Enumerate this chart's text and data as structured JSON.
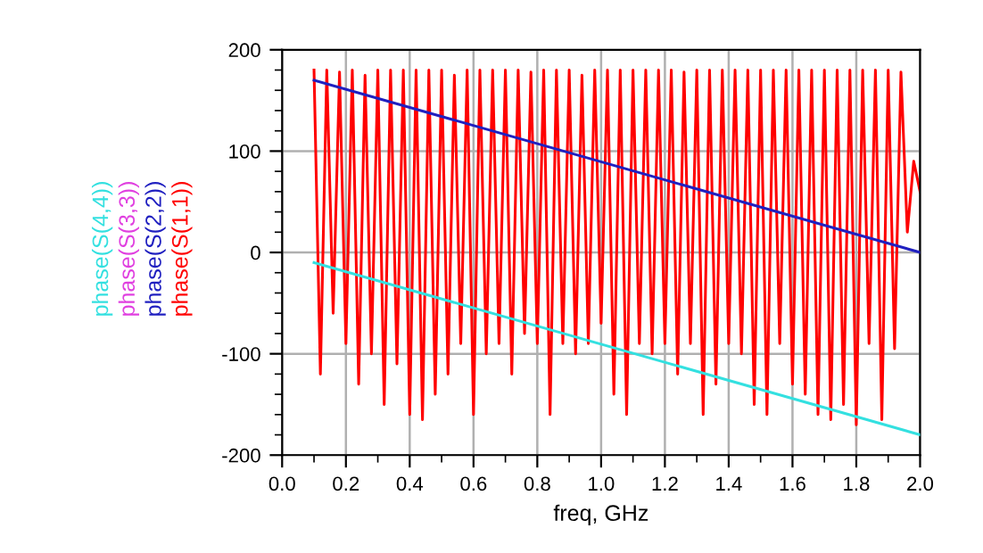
{
  "chart_data": {
    "type": "line",
    "xlabel": "freq, GHz",
    "xlim": [
      0,
      2
    ],
    "ylim": [
      -200,
      200
    ],
    "xticks": [
      {
        "value": 0,
        "label": "0.0"
      },
      {
        "value": 0.1,
        "label": null
      },
      {
        "value": 0.2,
        "label": "0.2"
      },
      {
        "value": 0.3,
        "label": null
      },
      {
        "value": 0.4,
        "label": "0.4"
      },
      {
        "value": 0.5,
        "label": null
      },
      {
        "value": 0.6,
        "label": "0.6"
      },
      {
        "value": 0.7,
        "label": null
      },
      {
        "value": 0.8,
        "label": "0.8"
      },
      {
        "value": 0.9,
        "label": null
      },
      {
        "value": 1,
        "label": "1.0"
      },
      {
        "value": 1.1,
        "label": null
      },
      {
        "value": 1.2,
        "label": "1.2"
      },
      {
        "value": 1.3,
        "label": null
      },
      {
        "value": 1.4,
        "label": "1.4"
      },
      {
        "value": 1.5,
        "label": null
      },
      {
        "value": 1.6,
        "label": "1.6"
      },
      {
        "value": 1.7,
        "label": null
      },
      {
        "value": 1.8,
        "label": "1.8"
      },
      {
        "value": 1.9,
        "label": null
      },
      {
        "value": 2,
        "label": "2.0"
      }
    ],
    "yticks": [
      -200,
      {
        "value": -180,
        "label": null
      },
      {
        "value": -160,
        "label": null
      },
      {
        "value": -140,
        "label": null
      },
      {
        "value": -120,
        "label": null
      },
      -100,
      {
        "value": -80,
        "label": null
      },
      {
        "value": -60,
        "label": null
      },
      {
        "value": -40,
        "label": null
      },
      {
        "value": -20,
        "label": null
      },
      0,
      {
        "value": 20,
        "label": null
      },
      {
        "value": 40,
        "label": null
      },
      {
        "value": 60,
        "label": null
      },
      {
        "value": 80,
        "label": null
      },
      100,
      {
        "value": 120,
        "label": null
      },
      {
        "value": 140,
        "label": null
      },
      {
        "value": 160,
        "label": null
      },
      {
        "value": 180,
        "label": null
      },
      200
    ],
    "grid": true,
    "legend": "left",
    "marker": "none",
    "line_style": "solid",
    "series": [
      {
        "name": "phase(S(1,1))",
        "color": "#ff0000",
        "x": [
          0.1,
          0.12,
          0.14,
          0.16,
          0.18,
          0.2,
          0.22,
          0.24,
          0.26,
          0.28,
          0.3,
          0.32,
          0.34,
          0.36,
          0.38,
          0.4,
          0.42,
          0.44,
          0.46,
          0.48,
          0.5,
          0.52,
          0.54,
          0.56,
          0.58,
          0.6,
          0.62,
          0.64,
          0.66,
          0.68,
          0.7,
          0.72,
          0.74,
          0.76,
          0.78,
          0.8,
          0.82,
          0.84,
          0.86,
          0.88,
          0.9,
          0.92,
          0.94,
          0.96,
          0.98,
          1.0,
          1.02,
          1.04,
          1.06,
          1.08,
          1.1,
          1.12,
          1.14,
          1.16,
          1.18,
          1.2,
          1.22,
          1.24,
          1.26,
          1.28,
          1.3,
          1.32,
          1.34,
          1.36,
          1.38,
          1.4,
          1.42,
          1.44,
          1.46,
          1.48,
          1.5,
          1.52,
          1.54,
          1.56,
          1.58,
          1.6,
          1.62,
          1.64,
          1.66,
          1.68,
          1.7,
          1.72,
          1.74,
          1.76,
          1.78,
          1.8,
          1.82,
          1.84,
          1.86,
          1.88,
          1.9,
          1.92,
          1.94,
          1.96,
          1.98,
          2.0
        ],
        "values": [
          180,
          -120,
          180,
          -60,
          178,
          -90,
          180,
          -130,
          175,
          -100,
          180,
          -150,
          180,
          -110,
          180,
          -160,
          180,
          -165,
          180,
          -140,
          180,
          -120,
          175,
          -90,
          180,
          -160,
          180,
          -100,
          180,
          -90,
          180,
          -120,
          180,
          -80,
          178,
          -90,
          180,
          -160,
          180,
          -90,
          180,
          -100,
          175,
          -90,
          180,
          -70,
          180,
          -140,
          180,
          -160,
          180,
          -90,
          180,
          -100,
          180,
          -90,
          180,
          -120,
          178,
          -90,
          180,
          -160,
          180,
          -130,
          180,
          -90,
          180,
          -100,
          180,
          -150,
          180,
          -160,
          180,
          -90,
          180,
          -130,
          180,
          -140,
          180,
          -160,
          180,
          -165,
          180,
          -150,
          180,
          -170,
          180,
          -90,
          180,
          -165,
          180,
          -95,
          178,
          20,
          90,
          60
        ]
      },
      {
        "name": "phase(S(2,2))",
        "color": "#2020c0",
        "x": [
          0.1,
          2.0
        ],
        "values": [
          170,
          0
        ]
      },
      {
        "name": "phase(S(3,3))",
        "color": "#e040e0"
      },
      {
        "name": "phase(S(4,4))",
        "color": "#33e0e0",
        "x": [
          0.1,
          2.0
        ],
        "values": [
          -10,
          -180
        ]
      }
    ]
  }
}
